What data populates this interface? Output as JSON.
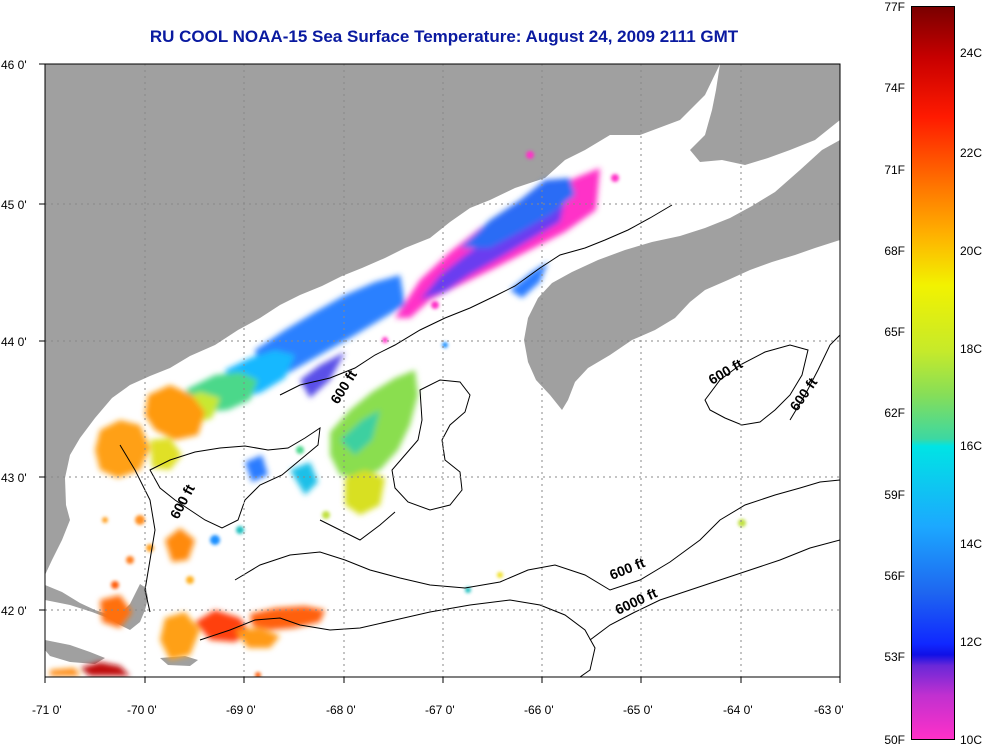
{
  "title": "RU COOL  NOAA-15  Sea Surface Temperature:  August 24, 2009 2111 GMT",
  "colors": {
    "land": "#a0a0a0",
    "water": "#ffffff",
    "title": "#0a1aa0",
    "grid": "#888888",
    "contour": "#000000"
  },
  "map": {
    "lon_range": [
      -71,
      -63
    ],
    "lat_range": [
      41.5,
      46
    ],
    "grid": "dotted",
    "x_ticks": [
      "-71 0'",
      "-70 0'",
      "-69 0'",
      "-68 0'",
      "-67 0'",
      "-66 0'",
      "-65 0'",
      "-64 0'",
      "-63 0'"
    ],
    "y_ticks": [
      "46 0'",
      "45 0'",
      "44 0'",
      "43 0'",
      "42 0'"
    ],
    "contour_labels": [
      "600 ft",
      "600 ft",
      "600 ft",
      "600 ft",
      "600 ft",
      "6000 ft"
    ]
  },
  "colorbar": {
    "fahrenheit": [
      "77F",
      "74F",
      "71F",
      "68F",
      "65F",
      "62F",
      "59F",
      "56F",
      "53F",
      "50F"
    ],
    "celsius": [
      "24C",
      "22C",
      "20C",
      "18C",
      "16C",
      "14C",
      "12C",
      "10C"
    ]
  }
}
